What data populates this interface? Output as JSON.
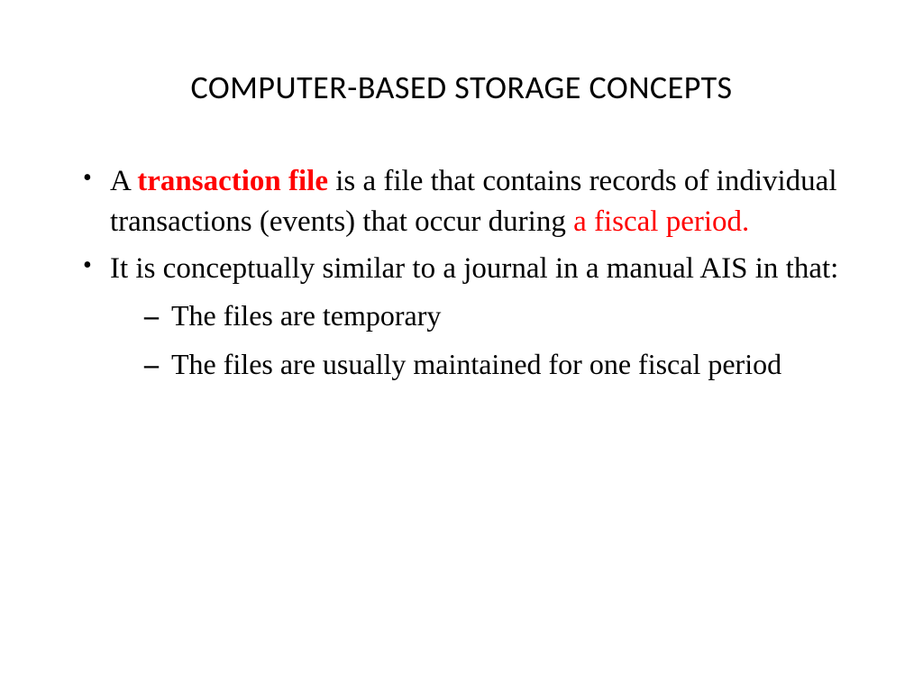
{
  "slide": {
    "title": "COMPUTER-BASED STORAGE CONCEPTS",
    "title_font": "Calibri",
    "title_fontsize": 36,
    "title_color": "#000000",
    "body_font": "Times New Roman",
    "body_fontsize": 33,
    "sub_fontsize": 32,
    "highlight_color": "#ff0000",
    "text_color": "#000000",
    "background_color": "#ffffff",
    "bullets": [
      {
        "segments": [
          {
            "text": "A ",
            "style": "normal"
          },
          {
            "text": "transaction file",
            "style": "bold-highlight"
          },
          {
            "text": " is a file that contains records of individual transactions (events) that occur during ",
            "style": "normal"
          },
          {
            "text": "a fiscal period.",
            "style": "highlight"
          }
        ]
      },
      {
        "segments": [
          {
            "text": "It is conceptually similar to a journal in a manual AIS in that:",
            "style": "normal"
          }
        ],
        "subbullets": [
          "The files are temporary",
          "The files are usually maintained for one fiscal period"
        ]
      }
    ],
    "b1_s1": "A ",
    "b1_s2": "transaction file",
    "b1_s3": " is a file that contains records of individual transactions (events) that occur during ",
    "b1_s4": "a fiscal period.",
    "b2_s1": "It is conceptually similar to a journal in a manual AIS in that:",
    "b2_sub1": "The files are temporary",
    "b2_sub2": "The files are usually maintained for one fiscal period"
  }
}
